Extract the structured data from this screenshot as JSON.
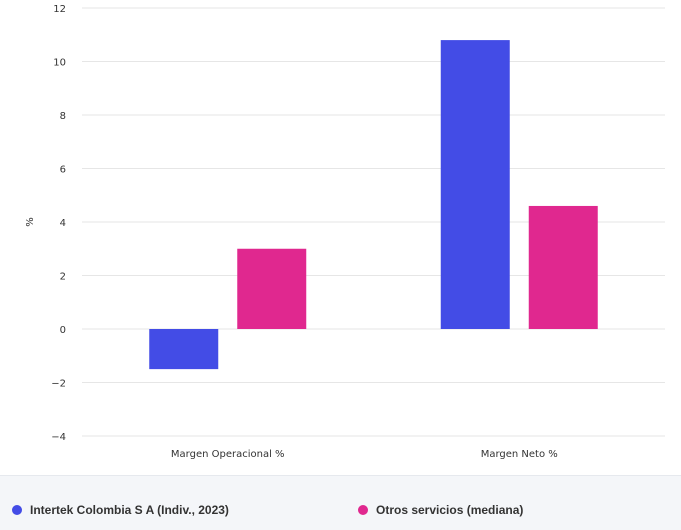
{
  "chart_data": {
    "type": "bar",
    "categories": [
      "Margen Operacional %",
      "Margen Neto %"
    ],
    "series": [
      {
        "name": "Intertek Colombia S A (Indiv., 2023)",
        "values": [
          -1.5,
          10.8
        ],
        "color": "#434ce6"
      },
      {
        "name": "Otros servicios (mediana)",
        "values": [
          3.0,
          4.6
        ],
        "color": "#e0288f"
      }
    ],
    "ylabel": "%",
    "xlabel": "",
    "ylim": [
      -4,
      12
    ],
    "yticks": [
      -4,
      -2,
      0,
      2,
      4,
      6,
      8,
      10,
      12
    ],
    "ytick_labels": [
      "−4",
      "−2",
      "0",
      "2",
      "4",
      "6",
      "8",
      "10",
      "12"
    ],
    "grid": true,
    "legend_position": "bottom"
  }
}
